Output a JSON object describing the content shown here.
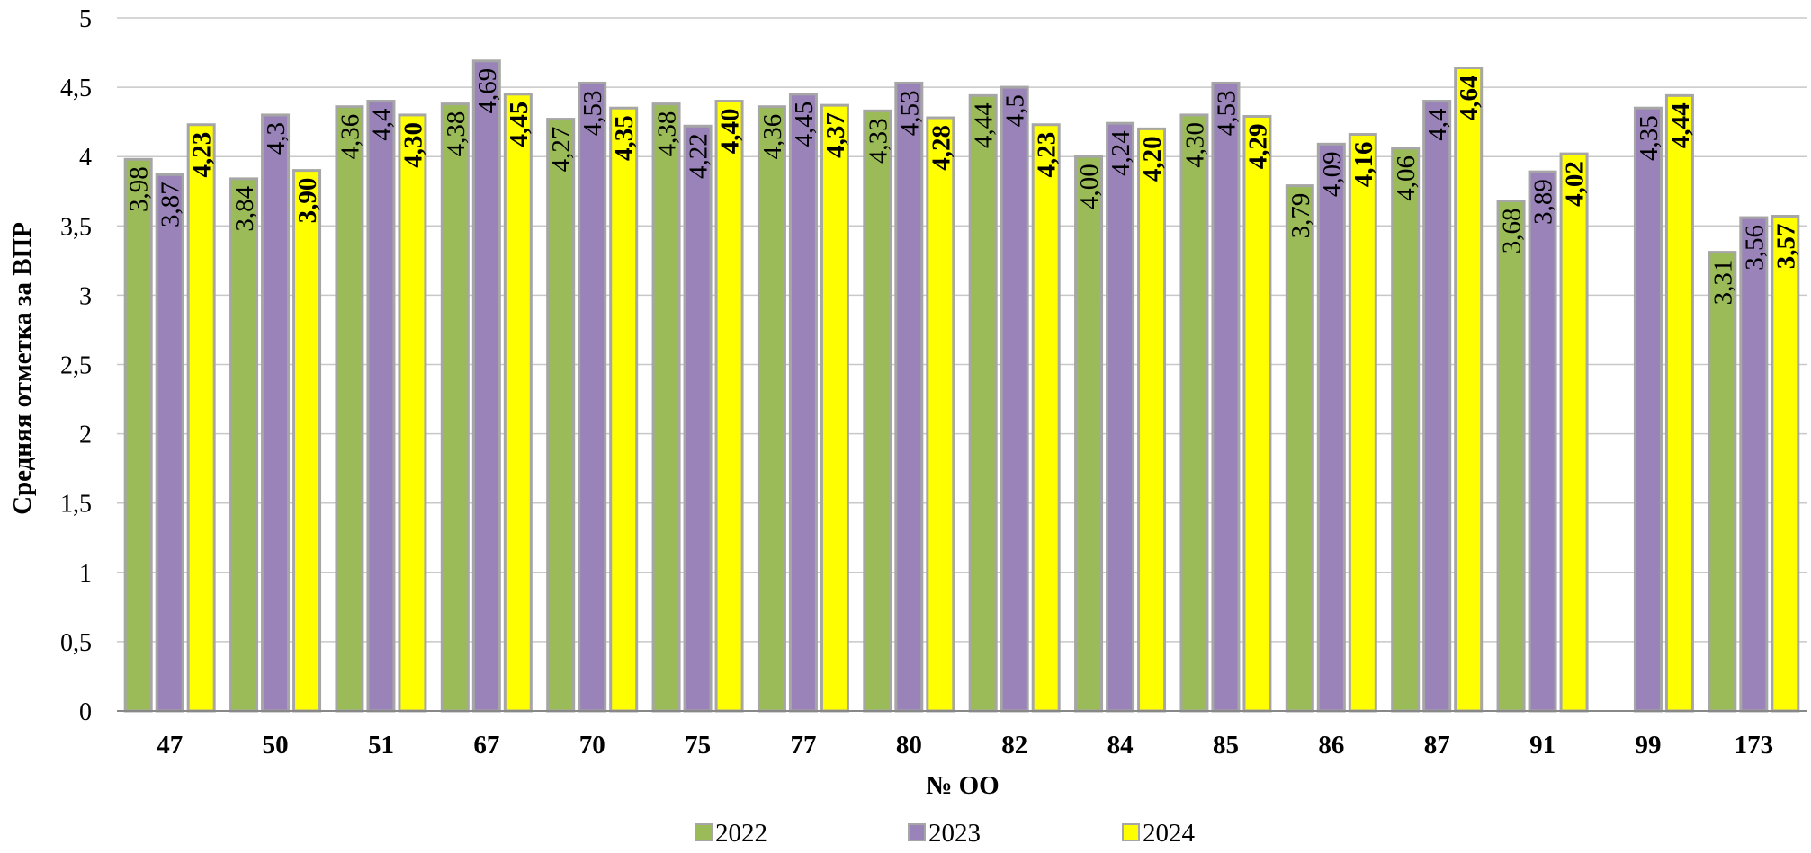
{
  "chart_data": {
    "type": "bar",
    "title": "",
    "xlabel": "№ ОО",
    "ylabel": "Средняя отметка за ВПР",
    "ylim": [
      0,
      5
    ],
    "yticks": [
      {
        "value": 0,
        "label": "0"
      },
      {
        "value": 0.5,
        "label": "0,5"
      },
      {
        "value": 1,
        "label": "1"
      },
      {
        "value": 1.5,
        "label": "1,5"
      },
      {
        "value": 2,
        "label": "2"
      },
      {
        "value": 2.5,
        "label": "2,5"
      },
      {
        "value": 3,
        "label": "3"
      },
      {
        "value": 3.5,
        "label": "3,5"
      },
      {
        "value": 4,
        "label": "4"
      },
      {
        "value": 4.5,
        "label": "4,5"
      },
      {
        "value": 5,
        "label": "5"
      }
    ],
    "grid": true,
    "legend_position": "bottom",
    "categories": [
      "47",
      "50",
      "51",
      "67",
      "70",
      "75",
      "77",
      "80",
      "82",
      "84",
      "85",
      "86",
      "87",
      "91",
      "99",
      "173"
    ],
    "series": [
      {
        "name": "2022",
        "color": "#9bbb59",
        "bold_labels": false,
        "values": [
          3.98,
          3.84,
          4.36,
          4.38,
          4.27,
          4.38,
          4.36,
          4.33,
          4.44,
          4.0,
          4.3,
          3.79,
          4.06,
          3.68,
          null,
          3.31
        ],
        "labels": [
          "3,98",
          "3,84",
          "4,36",
          "4,38",
          "4,27",
          "4,38",
          "4,36",
          "4,33",
          "4,44",
          "4,00",
          "4,30",
          "3,79",
          "4,06",
          "3,68",
          null,
          "3,31"
        ]
      },
      {
        "name": "2023",
        "color": "#9983b8",
        "bold_labels": false,
        "values": [
          3.87,
          4.3,
          4.4,
          4.69,
          4.53,
          4.22,
          4.45,
          4.53,
          4.5,
          4.24,
          4.53,
          4.09,
          4.4,
          3.89,
          4.35,
          3.56
        ],
        "labels": [
          "3,87",
          "4,3",
          "4,4",
          "4,69",
          "4,53",
          "4,22",
          "4,45",
          "4,53",
          "4,5",
          "4,24",
          "4,53",
          "4,09",
          "4,4",
          "3,89",
          "4,35",
          "3,56"
        ]
      },
      {
        "name": "2024",
        "color": "#ffff00",
        "bold_labels": true,
        "values": [
          4.23,
          3.9,
          4.3,
          4.45,
          4.35,
          4.4,
          4.37,
          4.28,
          4.23,
          4.2,
          4.29,
          4.16,
          4.64,
          4.02,
          4.44,
          3.57
        ],
        "labels": [
          "4,23",
          "3,90",
          "4,30",
          "4,45",
          "4,35",
          "4,40",
          "4,37",
          "4,28",
          "4,23",
          "4,20",
          "4,29",
          "4,16",
          "4,64",
          "4,02",
          "4,44",
          "3,57"
        ]
      }
    ]
  }
}
